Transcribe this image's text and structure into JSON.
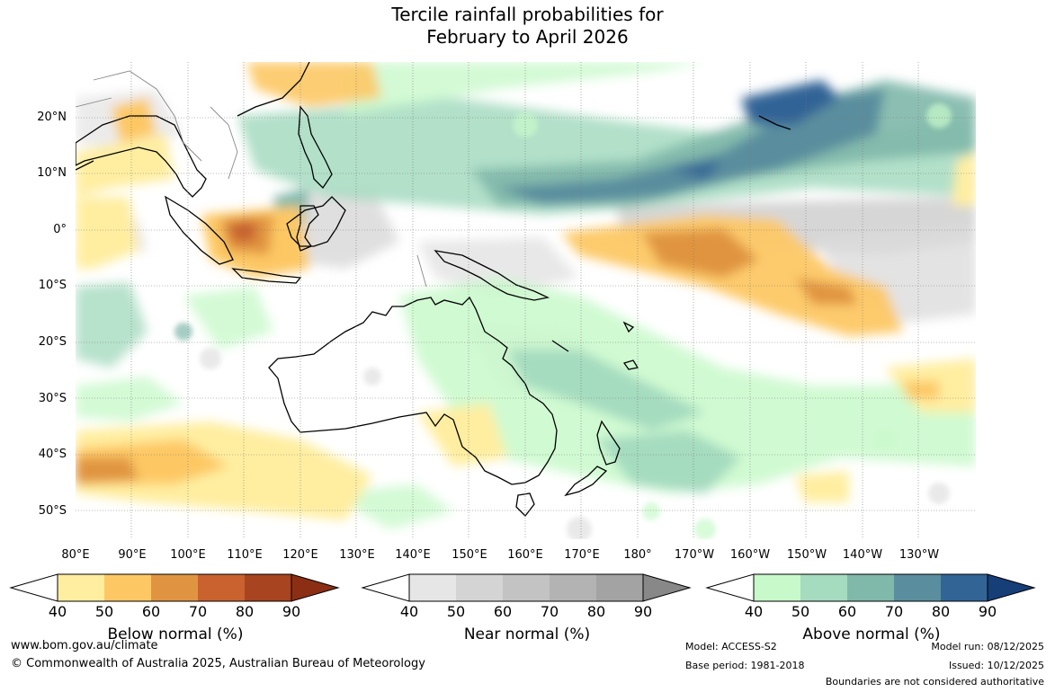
{
  "title_line1": "Tercile rainfall probabilities for",
  "title_line2": "February to April 2026",
  "map": {
    "lat_labels": [
      "20°N",
      "10°N",
      "0°",
      "10°S",
      "20°S",
      "30°S",
      "40°S",
      "50°S"
    ],
    "lon_labels": [
      "80°E",
      "90°E",
      "100°E",
      "110°E",
      "120°E",
      "130°E",
      "140°E",
      "150°E",
      "160°E",
      "170°E",
      "180°",
      "170°W",
      "160°W",
      "150°W",
      "140°W",
      "130°W"
    ]
  },
  "legends": [
    {
      "title": "Below normal (%)",
      "ticks": [
        "40",
        "50",
        "60",
        "70",
        "80",
        "90"
      ],
      "colors": [
        "#ffeea0",
        "#fdc864",
        "#e09441",
        "#c9622f",
        "#a8441f",
        "#8c2e14"
      ]
    },
    {
      "title": "Near normal (%)",
      "ticks": [
        "40",
        "50",
        "60",
        "70",
        "80",
        "90"
      ],
      "colors": [
        "#e6e6e6",
        "#d4d4d4",
        "#c3c3c3",
        "#b3b3b3",
        "#a3a3a3",
        "#888888"
      ]
    },
    {
      "title": "Above normal (%)",
      "ticks": [
        "40",
        "50",
        "60",
        "70",
        "80",
        "90"
      ],
      "colors": [
        "#c8f9ca",
        "#a5dbbf",
        "#80b8aa",
        "#5a8e9e",
        "#326496",
        "#163e77"
      ]
    }
  ],
  "footer": {
    "website": "www.bom.gov.au/climate",
    "copyright": "© Commonwealth of Australia 2025, Australian Bureau of Meteorology",
    "model": "Model: ACCESS-S2",
    "base_period": "Base period: 1981-2018",
    "model_run": "Model run: 08/12/2025",
    "issued": "Issued: 10/12/2025",
    "disclaimer": "Boundaries are not considered authoritative"
  }
}
